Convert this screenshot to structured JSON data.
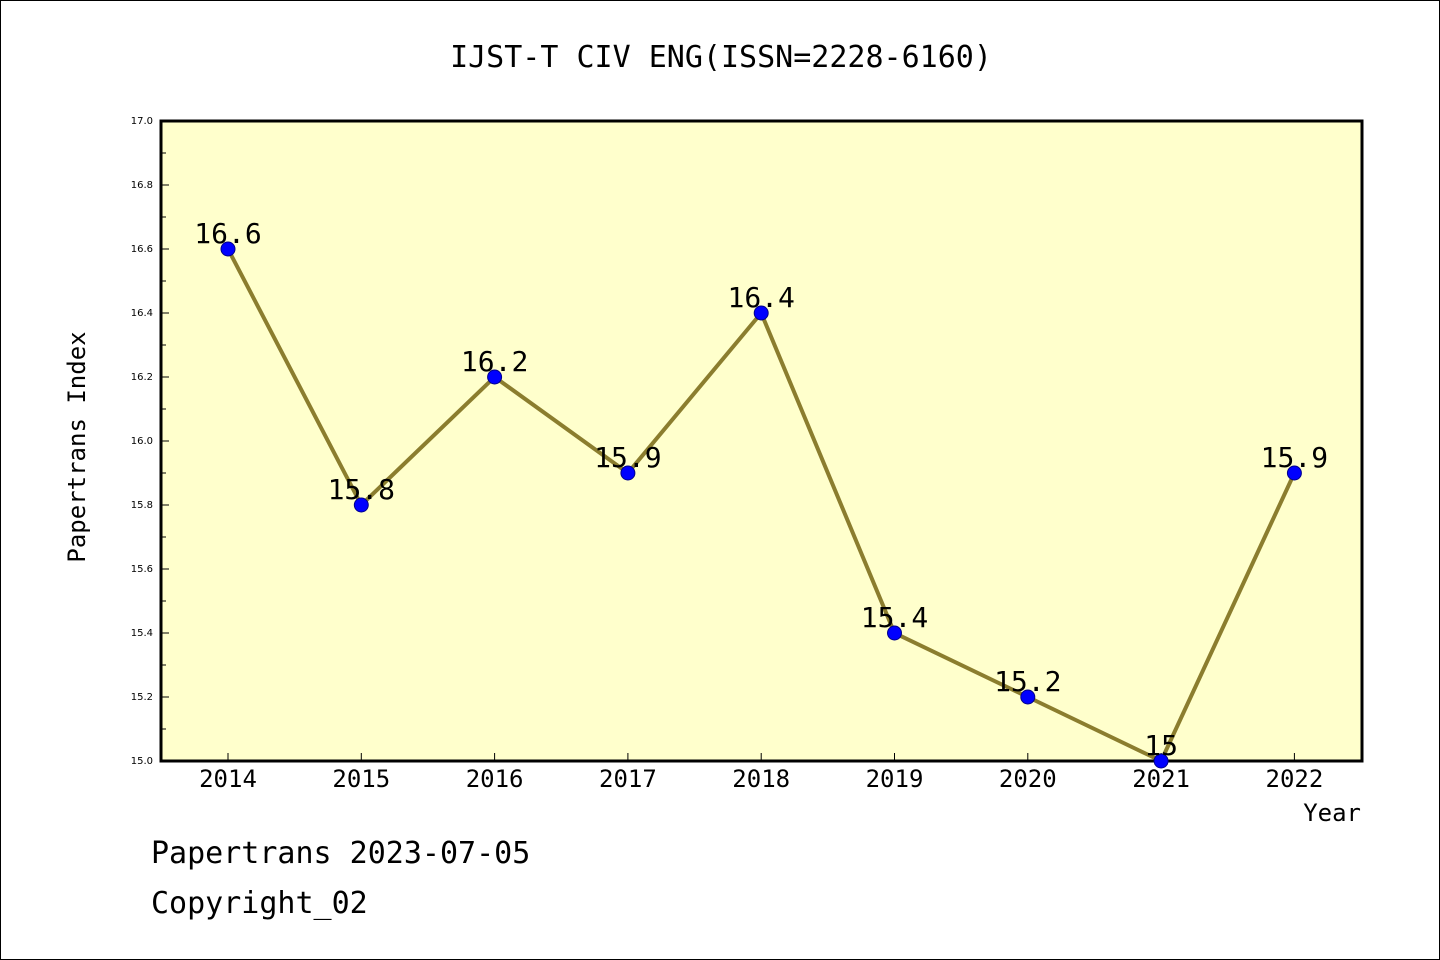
{
  "chart_data": {
    "type": "line",
    "title": "IJST-T CIV ENG(ISSN=2228-6160)",
    "xlabel": "Year",
    "ylabel": "Papertrans Index",
    "categories": [
      "2014",
      "2015",
      "2016",
      "2017",
      "2018",
      "2019",
      "2020",
      "2021",
      "2022"
    ],
    "series": [
      {
        "values": [
          16.6,
          15.8,
          16.2,
          15.9,
          16.4,
          15.4,
          15.2,
          15.0,
          15.9
        ],
        "data_labels": [
          "16.6",
          "15.8",
          "16.2",
          "15.9",
          "16.4",
          "15.4",
          "15.2",
          "15",
          "15.9"
        ]
      }
    ],
    "ylim": [
      15.0,
      17.0
    ],
    "yticks": [
      "15.0",
      "15.2",
      "15.4",
      "15.6",
      "15.8",
      "16.0",
      "16.2",
      "16.4",
      "16.6",
      "16.8",
      "17.0"
    ],
    "grid": false,
    "colors": {
      "plot_bg": "#ffffcc",
      "line": "#8b7d2e",
      "marker": "#0000ff",
      "marker_edge": "#00008b"
    }
  },
  "footer": {
    "stamp": "Papertrans 2023-07-05",
    "copyright": "Copyright_02"
  }
}
